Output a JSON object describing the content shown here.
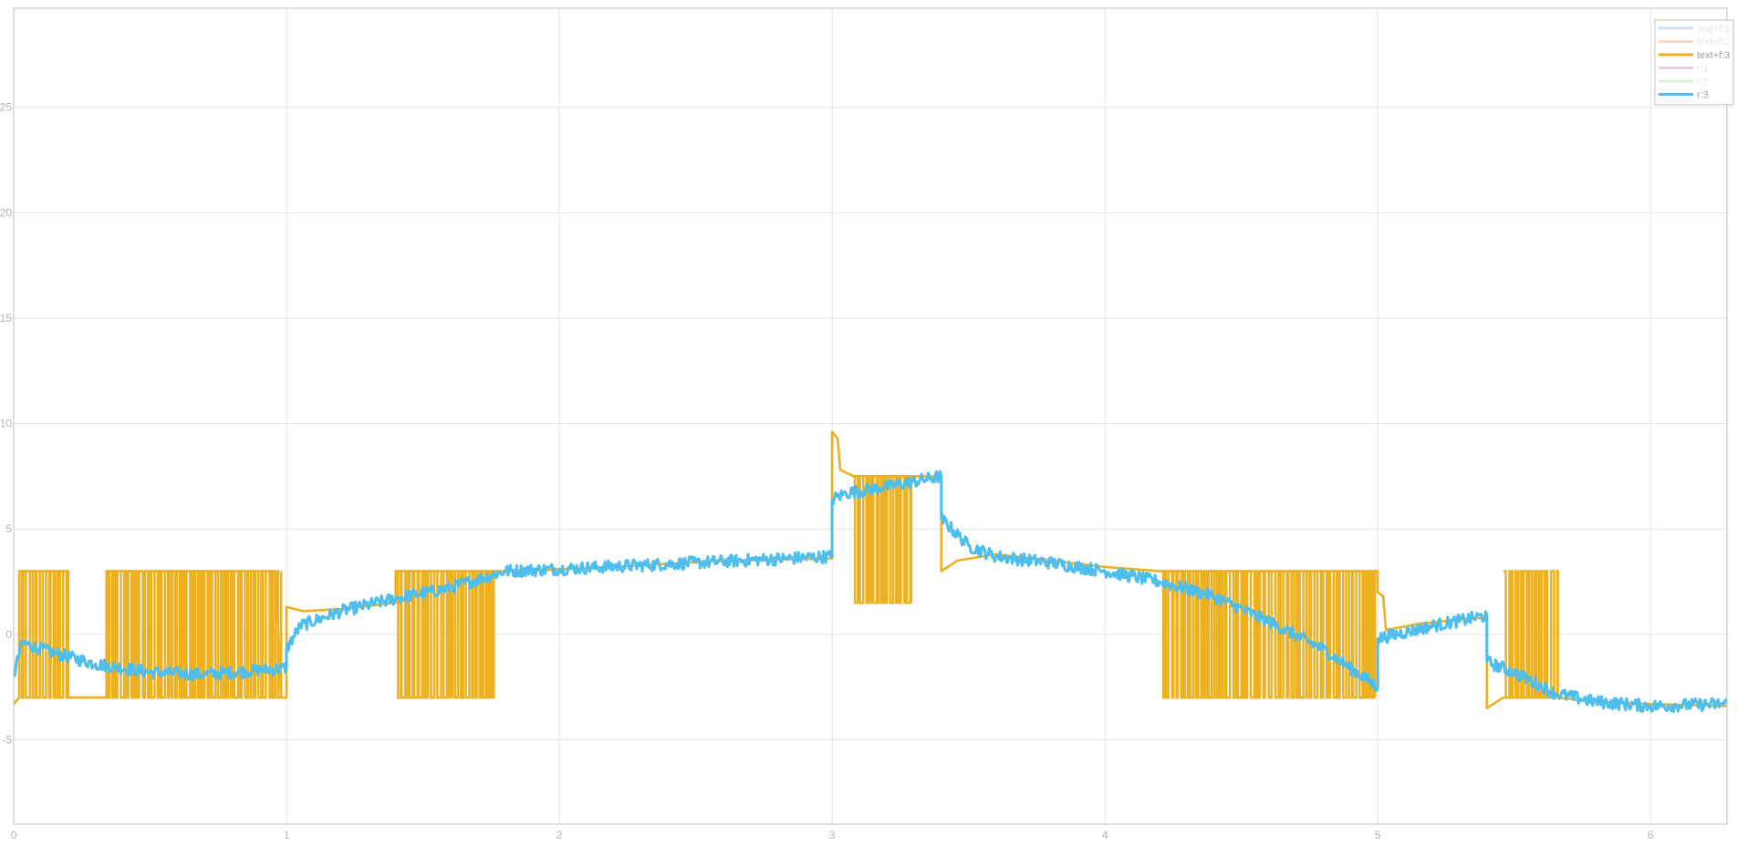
{
  "chart_data": {
    "type": "line",
    "title": "",
    "xlabel": "",
    "ylabel": "",
    "xlim": [
      0,
      6.28
    ],
    "ylim": [
      -9,
      29.7
    ],
    "grid": true,
    "legend_position": "top-right",
    "x_ticks": [
      "0",
      "1",
      "2",
      "3",
      "4",
      "5",
      "6"
    ],
    "y_ticks": [
      "-5",
      "0",
      "5",
      "10",
      "15",
      "20",
      "25"
    ],
    "x_tick_values": [
      0,
      1,
      2,
      3,
      4,
      5,
      6
    ],
    "y_tick_values": [
      -5,
      0,
      5,
      10,
      15,
      20,
      25
    ],
    "legend": [
      {
        "name": "text+f:1",
        "color": "#9fc7e8",
        "faded": true
      },
      {
        "name": "text+f:2",
        "color": "#efb9a0",
        "faded": true
      },
      {
        "name": "text+f:3",
        "color": "#edb120",
        "faded": false
      },
      {
        "name": "r:1",
        "color": "#d6a3cf",
        "faded": true
      },
      {
        "name": "r:2",
        "color": "#c2ddb3",
        "faded": true
      },
      {
        "name": "r:3",
        "color": "#4dbeee",
        "faded": false
      }
    ],
    "series": [
      {
        "name": "text+f:3",
        "color": "#edb120",
        "points": [
          [
            0.0,
            -3.3
          ],
          [
            0.02,
            -3.0
          ],
          [
            0.02,
            3.0
          ],
          [
            0.2,
            3.0
          ],
          [
            0.2,
            -3.0
          ],
          [
            0.34,
            -3.0
          ],
          [
            0.34,
            3.0
          ],
          [
            0.96,
            3.0
          ],
          [
            0.98,
            -3.0
          ],
          [
            1.0,
            -3.0
          ],
          [
            1.0,
            1.3
          ],
          [
            1.06,
            1.1
          ],
          [
            1.2,
            1.2
          ],
          [
            1.4,
            1.5
          ],
          [
            1.4,
            3.0
          ],
          [
            1.7,
            3.0
          ],
          [
            1.76,
            3.0
          ],
          [
            1.85,
            3.0
          ],
          [
            2.2,
            3.2
          ],
          [
            2.6,
            3.5
          ],
          [
            3.0,
            3.6
          ],
          [
            3.0,
            9.6
          ],
          [
            3.02,
            9.3
          ],
          [
            3.03,
            7.8
          ],
          [
            3.08,
            7.5
          ],
          [
            3.38,
            7.5
          ],
          [
            3.4,
            7.4
          ],
          [
            3.4,
            3.0
          ],
          [
            3.46,
            3.5
          ],
          [
            3.6,
            3.8
          ],
          [
            3.8,
            3.5
          ],
          [
            4.0,
            3.2
          ],
          [
            4.2,
            3.0
          ],
          [
            4.5,
            3.0
          ],
          [
            4.9,
            3.0
          ],
          [
            5.0,
            3.0
          ],
          [
            5.0,
            2.0
          ],
          [
            5.02,
            1.8
          ],
          [
            5.03,
            0.2
          ],
          [
            5.15,
            0.5
          ],
          [
            5.3,
            0.7
          ],
          [
            5.4,
            0.8
          ],
          [
            5.4,
            -3.5
          ],
          [
            5.46,
            -3.0
          ],
          [
            5.66,
            -3.0
          ],
          [
            5.8,
            -3.2
          ],
          [
            6.0,
            -3.3
          ],
          [
            6.28,
            -3.4
          ]
        ],
        "switching_bands": [
          {
            "x_start": 0.02,
            "x_end": 0.2,
            "low": -3.0,
            "high": 3.0
          },
          {
            "x_start": 0.34,
            "x_end": 0.98,
            "low": -3.0,
            "high": 3.0
          },
          {
            "x_start": 1.4,
            "x_end": 1.76,
            "low": -3.0,
            "high": 3.0
          },
          {
            "x_start": 3.07,
            "x_end": 3.29,
            "low": 1.5,
            "high": 7.5
          },
          {
            "x_start": 4.2,
            "x_end": 4.99,
            "low": -3.0,
            "high": 3.0
          },
          {
            "x_start": 5.46,
            "x_end": 5.66,
            "low": -3.0,
            "high": 3.0
          }
        ]
      },
      {
        "name": "r:3",
        "color": "#4dbeee",
        "points": [
          [
            0.0,
            -2.0
          ],
          [
            0.03,
            -0.4
          ],
          [
            0.15,
            -0.9
          ],
          [
            0.3,
            -1.4
          ],
          [
            0.5,
            -1.8
          ],
          [
            0.7,
            -1.9
          ],
          [
            0.9,
            -1.7
          ],
          [
            1.0,
            -1.6
          ],
          [
            1.0,
            -0.7
          ],
          [
            1.05,
            0.4
          ],
          [
            1.2,
            1.1
          ],
          [
            1.4,
            1.7
          ],
          [
            1.6,
            2.2
          ],
          [
            1.8,
            3.0
          ],
          [
            2.0,
            3.1
          ],
          [
            2.5,
            3.4
          ],
          [
            3.0,
            3.7
          ],
          [
            3.0,
            6.4
          ],
          [
            3.05,
            6.7
          ],
          [
            3.2,
            7.0
          ],
          [
            3.4,
            7.5
          ],
          [
            3.4,
            5.5
          ],
          [
            3.5,
            4.2
          ],
          [
            3.6,
            3.7
          ],
          [
            3.8,
            3.4
          ],
          [
            4.0,
            3.0
          ],
          [
            4.2,
            2.5
          ],
          [
            4.4,
            1.8
          ],
          [
            4.6,
            0.6
          ],
          [
            4.8,
            -0.7
          ],
          [
            5.0,
            -2.5
          ],
          [
            5.0,
            -0.2
          ],
          [
            5.2,
            0.4
          ],
          [
            5.4,
            0.9
          ],
          [
            5.4,
            -1.3
          ],
          [
            5.5,
            -1.8
          ],
          [
            5.65,
            -2.8
          ],
          [
            5.8,
            -3.2
          ],
          [
            6.0,
            -3.4
          ],
          [
            6.28,
            -3.3
          ]
        ],
        "noise_amplitude": 0.3
      }
    ]
  }
}
